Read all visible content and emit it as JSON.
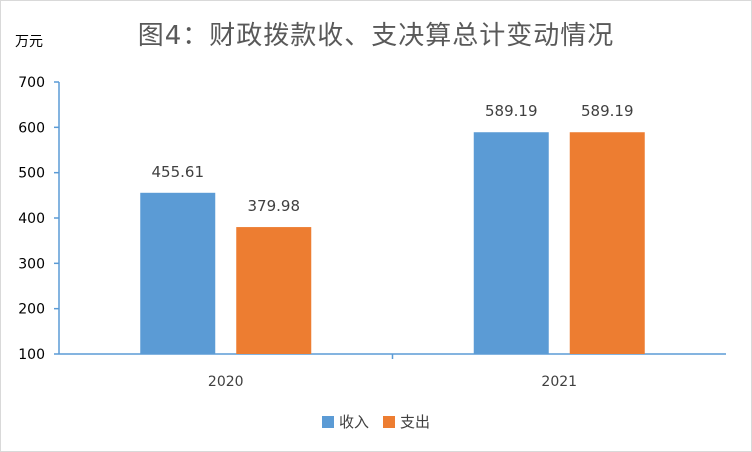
{
  "chart_data": {
    "type": "bar",
    "title": "图4：财政拨款收、支决算总计变动情况",
    "ylabel": "万元",
    "xlabel": "",
    "categories": [
      "2020",
      "2021"
    ],
    "series": [
      {
        "name": "收入",
        "color": "#5B9BD5",
        "values": [
          455.61,
          589.19
        ],
        "labels": [
          "455.61",
          "589.19"
        ]
      },
      {
        "name": "支出",
        "color": "#ED7D31",
        "values": [
          379.98,
          589.19
        ],
        "labels": [
          "379.98",
          "589.19"
        ]
      }
    ],
    "ylim": [
      100,
      700
    ],
    "yticks": [
      "100",
      "200",
      "300",
      "400",
      "500",
      "600",
      "700"
    ],
    "grid": false,
    "legend": "bottom-center"
  }
}
